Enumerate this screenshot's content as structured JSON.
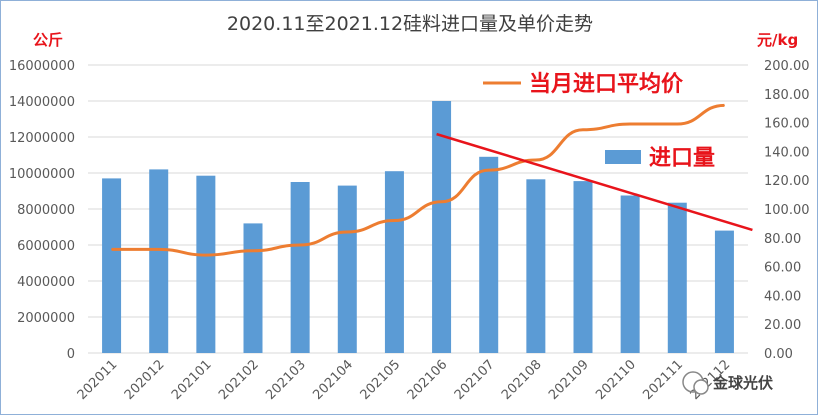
{
  "chart_data": {
    "type": "bar",
    "title": "2020.11至2021.12硅料进口量及单价走势",
    "left_unit": "公斤",
    "right_unit": "元/kg",
    "categories": [
      "202011",
      "202012",
      "202101",
      "202102",
      "202103",
      "202104",
      "202105",
      "202106",
      "202107",
      "202108",
      "202109",
      "202110",
      "202111",
      "202112"
    ],
    "series": [
      {
        "name": "进口量",
        "type": "bar",
        "axis": "left",
        "color": "#5b9bd5",
        "values": [
          9700000,
          10200000,
          9850000,
          7200000,
          9500000,
          9300000,
          10100000,
          14000000,
          10900000,
          9650000,
          9550000,
          8750000,
          8350000,
          6800000
        ]
      },
      {
        "name": "当月进口平均价",
        "type": "line",
        "axis": "right",
        "color": "#ed7d31",
        "values": [
          72,
          72,
          68,
          71,
          75,
          84,
          92,
          105,
          127,
          134,
          155,
          159,
          159,
          172
        ]
      }
    ],
    "trendline": {
      "color": "#e8141b",
      "start": [
        "202106",
        152
      ],
      "end": [
        "202112",
        91
      ]
    },
    "left_axis": {
      "ylim": [
        0,
        16000000
      ],
      "ticks": [
        "0",
        "2000000",
        "4000000",
        "6000000",
        "8000000",
        "10000000",
        "12000000",
        "14000000",
        "16000000"
      ]
    },
    "right_axis": {
      "ylim": [
        0,
        200
      ],
      "ticks": [
        "0.00",
        "20.00",
        "40.00",
        "60.00",
        "80.00",
        "100.00",
        "120.00",
        "140.00",
        "160.00",
        "180.00",
        "200.00"
      ]
    },
    "grid": "horizontal",
    "legend_position": "right-inside"
  },
  "watermark": {
    "text": "金球光伏"
  }
}
